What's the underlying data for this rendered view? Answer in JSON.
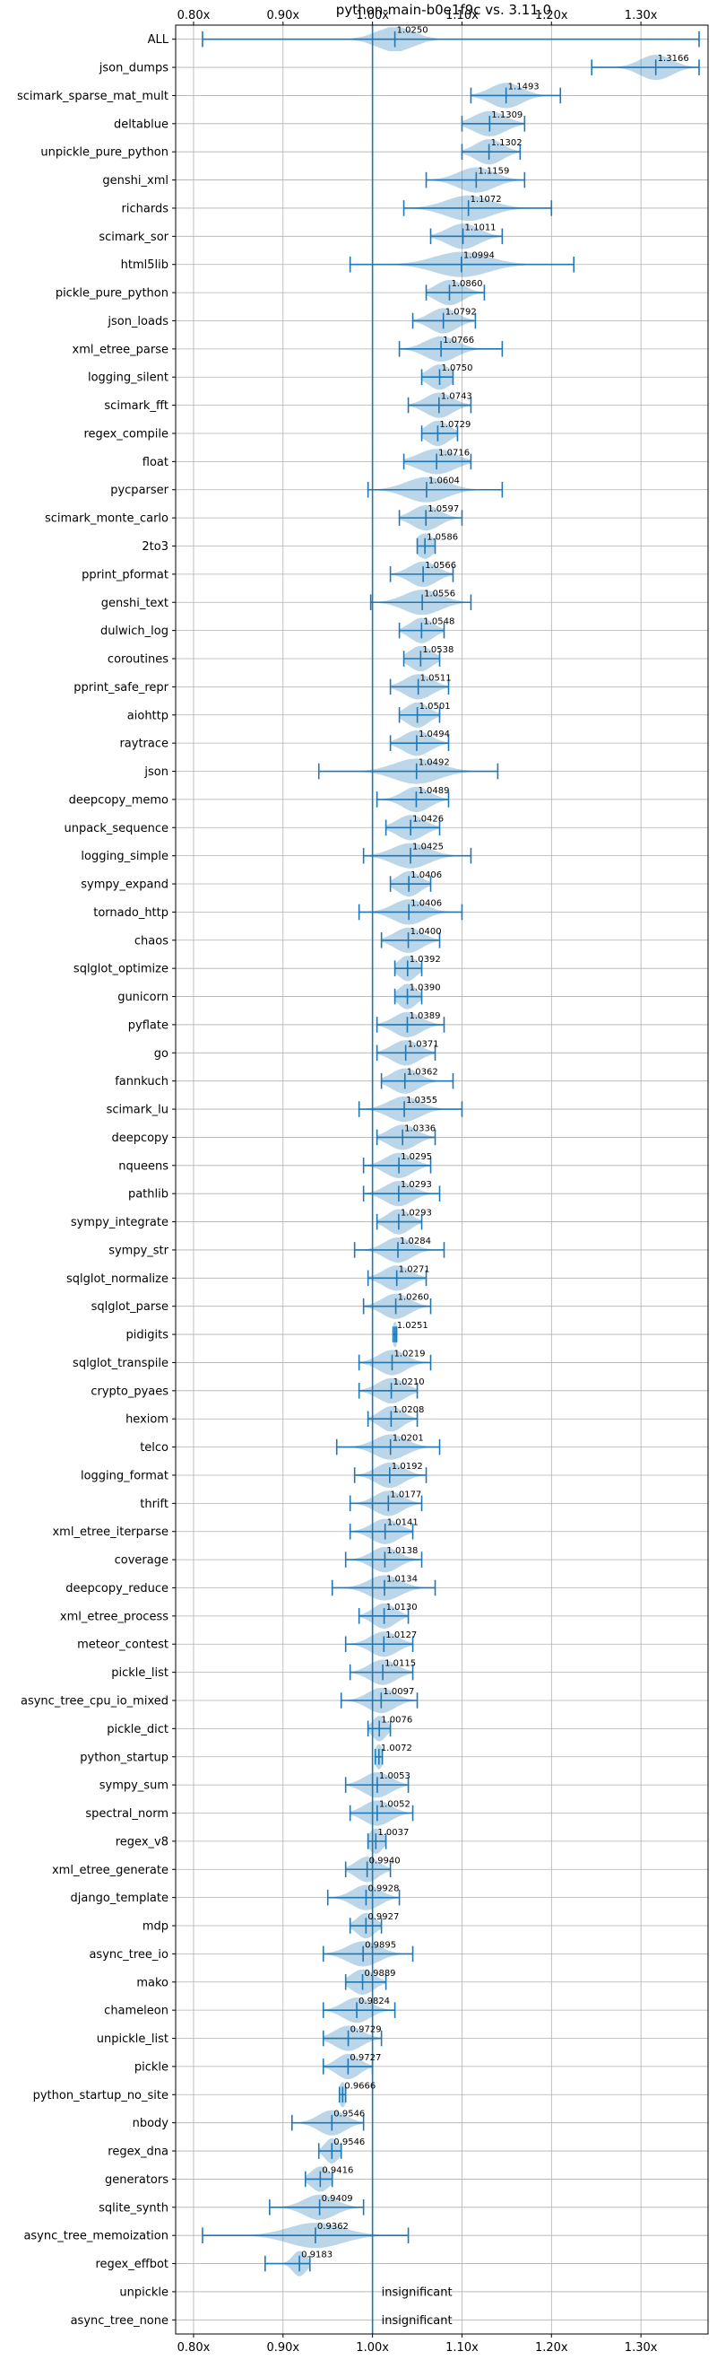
{
  "chart_data": {
    "type": "violin",
    "title": "python-main-b0e1f9c vs. 3.11.0",
    "baseline": 1.0,
    "xlim": [
      0.78,
      1.375
    ],
    "xticks": [
      0.8,
      0.9,
      1.0,
      1.1,
      1.2,
      1.3
    ],
    "xtick_labels": [
      "0.80x",
      "0.90x",
      "1.00x",
      "1.10x",
      "1.20x",
      "1.30x"
    ],
    "grid": true,
    "benchmarks": [
      {
        "name": "ALL",
        "label": "1.0250",
        "mean": 1.025,
        "min": 0.81,
        "max": 1.365,
        "spread": 0.04
      },
      {
        "name": "json_dumps",
        "label": "1.3166",
        "mean": 1.3166,
        "min": 1.245,
        "max": 1.365,
        "spread": 0.035
      },
      {
        "name": "scimark_sparse_mat_mult",
        "label": "1.1493",
        "mean": 1.1493,
        "min": 1.11,
        "max": 1.21,
        "spread": 0.035
      },
      {
        "name": "deltablue",
        "label": "1.1309",
        "mean": 1.1309,
        "min": 1.1,
        "max": 1.17,
        "spread": 0.035
      },
      {
        "name": "unpickle_pure_python",
        "label": "1.1302",
        "mean": 1.1302,
        "min": 1.1,
        "max": 1.165,
        "spread": 0.03
      },
      {
        "name": "genshi_xml",
        "label": "1.1159",
        "mean": 1.1159,
        "min": 1.06,
        "max": 1.17,
        "spread": 0.04
      },
      {
        "name": "richards",
        "label": "1.1072",
        "mean": 1.1072,
        "min": 1.035,
        "max": 1.2,
        "spread": 0.05
      },
      {
        "name": "scimark_sor",
        "label": "1.1011",
        "mean": 1.1011,
        "min": 1.065,
        "max": 1.145,
        "spread": 0.035
      },
      {
        "name": "html5lib",
        "label": "1.0994",
        "mean": 1.0994,
        "min": 0.975,
        "max": 1.225,
        "spread": 0.06
      },
      {
        "name": "pickle_pure_python",
        "label": "1.0860",
        "mean": 1.086,
        "min": 1.06,
        "max": 1.125,
        "spread": 0.03
      },
      {
        "name": "json_loads",
        "label": "1.0792",
        "mean": 1.0792,
        "min": 1.045,
        "max": 1.115,
        "spread": 0.03
      },
      {
        "name": "xml_etree_parse",
        "label": "1.0766",
        "mean": 1.0766,
        "min": 1.03,
        "max": 1.145,
        "spread": 0.035
      },
      {
        "name": "logging_silent",
        "label": "1.0750",
        "mean": 1.075,
        "min": 1.055,
        "max": 1.09,
        "spread": 0.025
      },
      {
        "name": "scimark_fft",
        "label": "1.0743",
        "mean": 1.0743,
        "min": 1.04,
        "max": 1.11,
        "spread": 0.03
      },
      {
        "name": "regex_compile",
        "label": "1.0729",
        "mean": 1.0729,
        "min": 1.055,
        "max": 1.095,
        "spread": 0.025
      },
      {
        "name": "float",
        "label": "1.0716",
        "mean": 1.0716,
        "min": 1.035,
        "max": 1.11,
        "spread": 0.04
      },
      {
        "name": "pycparser",
        "label": "1.0604",
        "mean": 1.0604,
        "min": 0.995,
        "max": 1.145,
        "spread": 0.045
      },
      {
        "name": "scimark_monte_carlo",
        "label": "1.0597",
        "mean": 1.0597,
        "min": 1.03,
        "max": 1.1,
        "spread": 0.03
      },
      {
        "name": "2to3",
        "label": "1.0586",
        "mean": 1.0586,
        "min": 1.05,
        "max": 1.07,
        "spread": 0.02
      },
      {
        "name": "pprint_pformat",
        "label": "1.0566",
        "mean": 1.0566,
        "min": 1.02,
        "max": 1.09,
        "spread": 0.03
      },
      {
        "name": "genshi_text",
        "label": "1.0556",
        "mean": 1.0556,
        "min": 0.998,
        "max": 1.11,
        "spread": 0.04
      },
      {
        "name": "dulwich_log",
        "label": "1.0548",
        "mean": 1.0548,
        "min": 1.03,
        "max": 1.08,
        "spread": 0.025
      },
      {
        "name": "coroutines",
        "label": "1.0538",
        "mean": 1.0538,
        "min": 1.035,
        "max": 1.075,
        "spread": 0.025
      },
      {
        "name": "pprint_safe_repr",
        "label": "1.0511",
        "mean": 1.0511,
        "min": 1.02,
        "max": 1.085,
        "spread": 0.03
      },
      {
        "name": "aiohttp",
        "label": "1.0501",
        "mean": 1.0501,
        "min": 1.03,
        "max": 1.075,
        "spread": 0.025
      },
      {
        "name": "raytrace",
        "label": "1.0494",
        "mean": 1.0494,
        "min": 1.02,
        "max": 1.085,
        "spread": 0.03
      },
      {
        "name": "json",
        "label": "1.0492",
        "mean": 1.0492,
        "min": 0.94,
        "max": 1.14,
        "spread": 0.05
      },
      {
        "name": "deepcopy_memo",
        "label": "1.0489",
        "mean": 1.0489,
        "min": 1.005,
        "max": 1.085,
        "spread": 0.03
      },
      {
        "name": "unpack_sequence",
        "label": "1.0426",
        "mean": 1.0426,
        "min": 1.015,
        "max": 1.075,
        "spread": 0.03
      },
      {
        "name": "logging_simple",
        "label": "1.0425",
        "mean": 1.0425,
        "min": 0.99,
        "max": 1.11,
        "spread": 0.04
      },
      {
        "name": "sympy_expand",
        "label": "1.0406",
        "mean": 1.0406,
        "min": 1.02,
        "max": 1.065,
        "spread": 0.025
      },
      {
        "name": "tornado_http",
        "label": "1.0406",
        "mean": 1.0406,
        "min": 0.985,
        "max": 1.1,
        "spread": 0.035
      },
      {
        "name": "chaos",
        "label": "1.0400",
        "mean": 1.04,
        "min": 1.01,
        "max": 1.075,
        "spread": 0.03
      },
      {
        "name": "sqlglot_optimize",
        "label": "1.0392",
        "mean": 1.0392,
        "min": 1.025,
        "max": 1.055,
        "spread": 0.02
      },
      {
        "name": "gunicorn",
        "label": "1.0390",
        "mean": 1.039,
        "min": 1.025,
        "max": 1.055,
        "spread": 0.02
      },
      {
        "name": "pyflate",
        "label": "1.0389",
        "mean": 1.0389,
        "min": 1.005,
        "max": 1.08,
        "spread": 0.03
      },
      {
        "name": "go",
        "label": "1.0371",
        "mean": 1.0371,
        "min": 1.005,
        "max": 1.07,
        "spread": 0.03
      },
      {
        "name": "fannkuch",
        "label": "1.0362",
        "mean": 1.0362,
        "min": 1.01,
        "max": 1.09,
        "spread": 0.03
      },
      {
        "name": "scimark_lu",
        "label": "1.0355",
        "mean": 1.0355,
        "min": 0.985,
        "max": 1.1,
        "spread": 0.035
      },
      {
        "name": "deepcopy",
        "label": "1.0336",
        "mean": 1.0336,
        "min": 1.005,
        "max": 1.07,
        "spread": 0.03
      },
      {
        "name": "nqueens",
        "label": "1.0295",
        "mean": 1.0295,
        "min": 0.99,
        "max": 1.065,
        "spread": 0.03
      },
      {
        "name": "pathlib",
        "label": "1.0293",
        "mean": 1.0293,
        "min": 0.99,
        "max": 1.075,
        "spread": 0.03
      },
      {
        "name": "sympy_integrate",
        "label": "1.0293",
        "mean": 1.0293,
        "min": 1.005,
        "max": 1.055,
        "spread": 0.025
      },
      {
        "name": "sympy_str",
        "label": "1.0284",
        "mean": 1.0284,
        "min": 0.98,
        "max": 1.08,
        "spread": 0.03
      },
      {
        "name": "sqlglot_normalize",
        "label": "1.0271",
        "mean": 1.0271,
        "min": 0.995,
        "max": 1.06,
        "spread": 0.03
      },
      {
        "name": "sqlglot_parse",
        "label": "1.0260",
        "mean": 1.026,
        "min": 0.99,
        "max": 1.065,
        "spread": 0.03
      },
      {
        "name": "pidigits",
        "label": "1.0251",
        "mean": 1.0251,
        "min": 1.023,
        "max": 1.027,
        "spread": 0.006
      },
      {
        "name": "sqlglot_transpile",
        "label": "1.0219",
        "mean": 1.0219,
        "min": 0.985,
        "max": 1.065,
        "spread": 0.03
      },
      {
        "name": "crypto_pyaes",
        "label": "1.0210",
        "mean": 1.021,
        "min": 0.985,
        "max": 1.05,
        "spread": 0.03
      },
      {
        "name": "hexiom",
        "label": "1.0208",
        "mean": 1.0208,
        "min": 0.995,
        "max": 1.05,
        "spread": 0.025
      },
      {
        "name": "telco",
        "label": "1.0201",
        "mean": 1.0201,
        "min": 0.96,
        "max": 1.075,
        "spread": 0.035
      },
      {
        "name": "logging_format",
        "label": "1.0192",
        "mean": 1.0192,
        "min": 0.98,
        "max": 1.06,
        "spread": 0.03
      },
      {
        "name": "thrift",
        "label": "1.0177",
        "mean": 1.0177,
        "min": 0.975,
        "max": 1.055,
        "spread": 0.03
      },
      {
        "name": "xml_etree_iterparse",
        "label": "1.0141",
        "mean": 1.0141,
        "min": 0.975,
        "max": 1.045,
        "spread": 0.03
      },
      {
        "name": "coverage",
        "label": "1.0138",
        "mean": 1.0138,
        "min": 0.97,
        "max": 1.055,
        "spread": 0.03
      },
      {
        "name": "deepcopy_reduce",
        "label": "1.0134",
        "mean": 1.0134,
        "min": 0.955,
        "max": 1.07,
        "spread": 0.035
      },
      {
        "name": "xml_etree_process",
        "label": "1.0130",
        "mean": 1.013,
        "min": 0.985,
        "max": 1.04,
        "spread": 0.025
      },
      {
        "name": "meteor_contest",
        "label": "1.0127",
        "mean": 1.0127,
        "min": 0.97,
        "max": 1.045,
        "spread": 0.03
      },
      {
        "name": "pickle_list",
        "label": "1.0115",
        "mean": 1.0115,
        "min": 0.975,
        "max": 1.045,
        "spread": 0.03
      },
      {
        "name": "async_tree_cpu_io_mixed",
        "label": "1.0097",
        "mean": 1.0097,
        "min": 0.965,
        "max": 1.05,
        "spread": 0.03
      },
      {
        "name": "pickle_dict",
        "label": "1.0076",
        "mean": 1.0076,
        "min": 0.995,
        "max": 1.02,
        "spread": 0.015
      },
      {
        "name": "python_startup",
        "label": "1.0072",
        "mean": 1.0072,
        "min": 1.003,
        "max": 1.011,
        "spread": 0.008
      },
      {
        "name": "sympy_sum",
        "label": "1.0053",
        "mean": 1.0053,
        "min": 0.97,
        "max": 1.04,
        "spread": 0.03
      },
      {
        "name": "spectral_norm",
        "label": "1.0052",
        "mean": 1.0052,
        "min": 0.975,
        "max": 1.045,
        "spread": 0.03
      },
      {
        "name": "regex_v8",
        "label": "1.0037",
        "mean": 1.0037,
        "min": 0.995,
        "max": 1.015,
        "spread": 0.015
      },
      {
        "name": "xml_etree_generate",
        "label": "0.9940",
        "mean": 0.994,
        "min": 0.97,
        "max": 1.02,
        "spread": 0.025
      },
      {
        "name": "django_template",
        "label": "0.9928",
        "mean": 0.9928,
        "min": 0.95,
        "max": 1.03,
        "spread": 0.03
      },
      {
        "name": "mdp",
        "label": "0.9927",
        "mean": 0.9927,
        "min": 0.975,
        "max": 1.01,
        "spread": 0.02
      },
      {
        "name": "async_tree_io",
        "label": "0.9895",
        "mean": 0.9895,
        "min": 0.945,
        "max": 1.045,
        "spread": 0.035
      },
      {
        "name": "mako",
        "label": "0.9889",
        "mean": 0.9889,
        "min": 0.97,
        "max": 1.015,
        "spread": 0.025
      },
      {
        "name": "chameleon",
        "label": "0.9824",
        "mean": 0.9824,
        "min": 0.945,
        "max": 1.025,
        "spread": 0.03
      },
      {
        "name": "unpickle_list",
        "label": "0.9729",
        "mean": 0.9729,
        "min": 0.945,
        "max": 1.01,
        "spread": 0.03
      },
      {
        "name": "pickle",
        "label": "0.9727",
        "mean": 0.9727,
        "min": 0.945,
        "max": 1.0,
        "spread": 0.025
      },
      {
        "name": "python_startup_no_site",
        "label": "0.9666",
        "mean": 0.9666,
        "min": 0.963,
        "max": 0.97,
        "spread": 0.008
      },
      {
        "name": "nbody",
        "label": "0.9546",
        "mean": 0.9546,
        "min": 0.91,
        "max": 0.99,
        "spread": 0.03
      },
      {
        "name": "regex_dna",
        "label": "0.9546",
        "mean": 0.9546,
        "min": 0.94,
        "max": 0.965,
        "spread": 0.015
      },
      {
        "name": "generators",
        "label": "0.9416",
        "mean": 0.9416,
        "min": 0.925,
        "max": 0.955,
        "spread": 0.02
      },
      {
        "name": "sqlite_synth",
        "label": "0.9409",
        "mean": 0.9409,
        "min": 0.885,
        "max": 0.99,
        "spread": 0.035
      },
      {
        "name": "async_tree_memoization",
        "label": "0.9362",
        "mean": 0.9362,
        "min": 0.81,
        "max": 1.04,
        "spread": 0.06
      },
      {
        "name": "regex_effbot",
        "label": "0.9183",
        "mean": 0.9183,
        "min": 0.88,
        "max": 0.93,
        "spread": 0.015
      },
      {
        "name": "unpickle",
        "label": "insignificant",
        "insignificant": true
      },
      {
        "name": "async_tree_none",
        "label": "insignificant",
        "insignificant": true
      }
    ]
  }
}
